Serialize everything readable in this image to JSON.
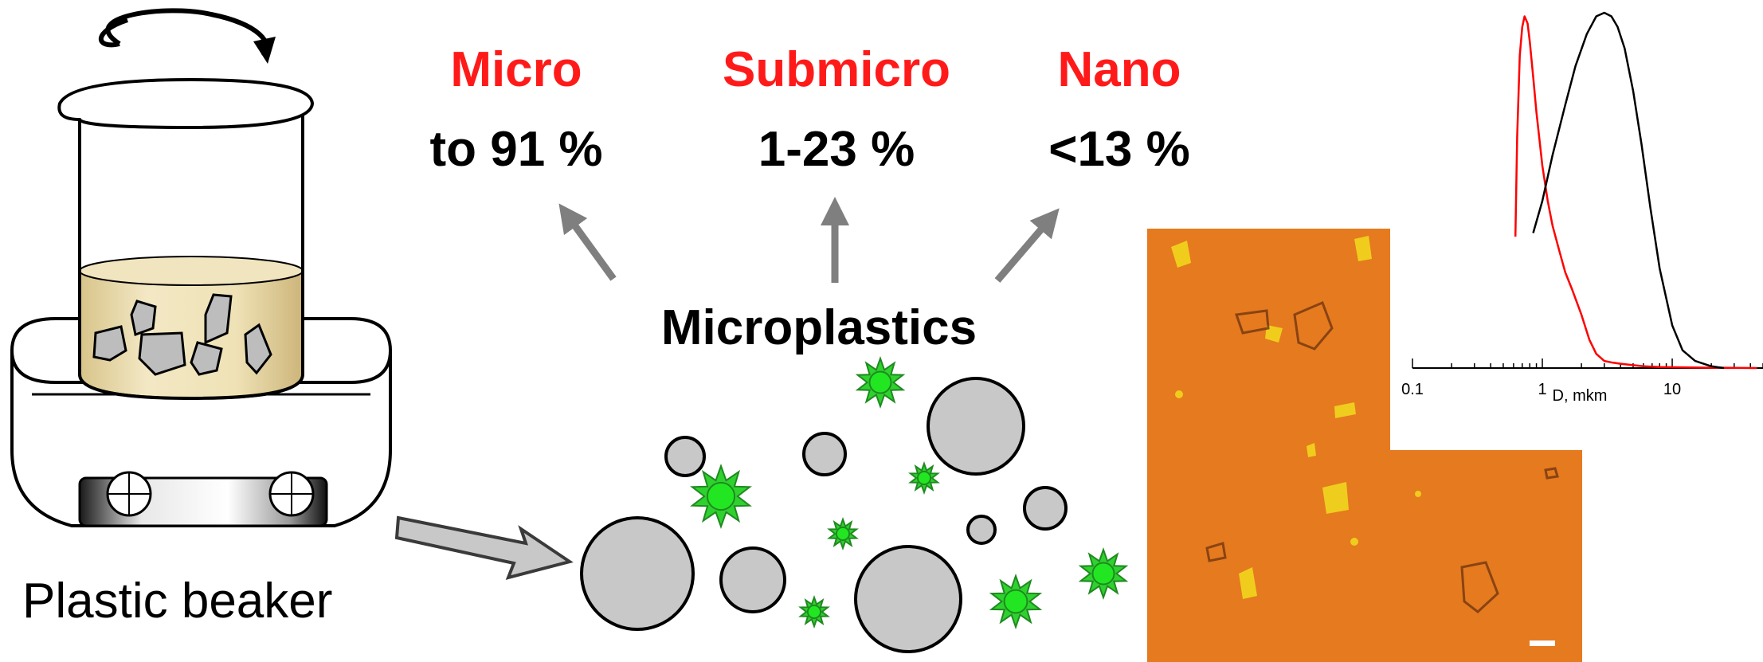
{
  "colors": {
    "accent_red": "#ff1a1a",
    "particle_gray": "#c8c8c8",
    "particle_green": "#2fd12f",
    "liquid": "#eadcab",
    "micrograph_bg": "#e57a1f",
    "arrow_gray": "#808080"
  },
  "categories": [
    {
      "name": "Micro",
      "value": "to 91 %"
    },
    {
      "name": "Submicro",
      "value": "1-23 %"
    },
    {
      "name": "Nano",
      "value": "<13 %"
    }
  ],
  "center_label": "Microplastics",
  "beaker_label": "Plastic beaker",
  "icons": [
    "rotation-arrow-icon",
    "beaker-icon",
    "stirrer-icon",
    "flow-arrow-icon"
  ],
  "chart_data": {
    "type": "line",
    "xscale": "log",
    "xlim": [
      0.1,
      50
    ],
    "xticks": [
      "0.1",
      "1",
      "10"
    ],
    "xlabel": "D, mkm",
    "series": [
      {
        "color": "#ff0000",
        "x": [
          0.62,
          0.64,
          0.67,
          0.7,
          0.73,
          0.77,
          0.8,
          0.85,
          0.9,
          1.0,
          1.1,
          1.2,
          1.35,
          1.5,
          1.7,
          2.0,
          2.3,
          2.6,
          3.0,
          3.5,
          4.0,
          5.0,
          6.0,
          8.0,
          12,
          20,
          45
        ],
        "y": [
          0.37,
          0.65,
          0.88,
          0.96,
          0.99,
          0.97,
          0.92,
          0.82,
          0.72,
          0.57,
          0.47,
          0.4,
          0.33,
          0.27,
          0.22,
          0.15,
          0.08,
          0.04,
          0.02,
          0.015,
          0.012,
          0.008,
          0.005,
          0.003,
          0.002,
          0.001,
          0.0
        ]
      },
      {
        "color": "#000000",
        "x": [
          0.85,
          1.0,
          1.2,
          1.5,
          1.8,
          2.2,
          2.6,
          3.0,
          3.4,
          3.8,
          4.3,
          5.0,
          5.8,
          6.8,
          8.0,
          10,
          12,
          15,
          20,
          25
        ],
        "y": [
          0.38,
          0.47,
          0.6,
          0.74,
          0.85,
          0.94,
          0.99,
          1.0,
          0.99,
          0.96,
          0.9,
          0.78,
          0.63,
          0.45,
          0.28,
          0.12,
          0.05,
          0.02,
          0.005,
          0.0
        ]
      }
    ]
  }
}
